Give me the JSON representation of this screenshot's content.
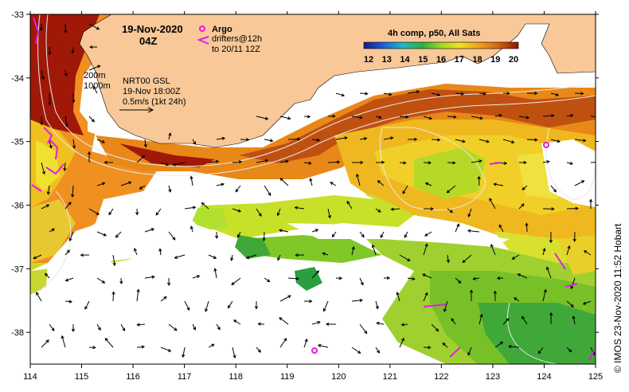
{
  "title": {
    "date": "19-Nov-2020",
    "time": "04Z"
  },
  "legend": {
    "argo_label": "Argo",
    "drifters_line1": "drifters@12h",
    "drifters_line2": "to 20/11 12Z",
    "argo_color": "#e020e0",
    "drifter_color": "#e020e0"
  },
  "colorbar": {
    "title": "4h comp, p50, All Sats",
    "ticks": [
      "12",
      "13",
      "14",
      "15",
      "16",
      "17",
      "18",
      "19",
      "20"
    ]
  },
  "contours": {
    "label_200": "200m",
    "label_1000": "1000m"
  },
  "current_info": {
    "line1": "NRT00 GSL",
    "line2": "19-Nov 18:00Z",
    "line3": "0.5m/s (1kt 24h)"
  },
  "axes": {
    "x_ticks": [
      "114",
      "115",
      "116",
      "117",
      "118",
      "119",
      "120",
      "121",
      "122",
      "123",
      "124",
      "125"
    ],
    "y_ticks": [
      "-33",
      "-34",
      "-35",
      "-36",
      "-37",
      "-38"
    ],
    "x_range": [
      114,
      125
    ],
    "y_range": [
      -38.5,
      -33
    ]
  },
  "credit": "©  IMOS 23-Nov-2020 11:52 Hobart",
  "colors": {
    "land": "#f8c898",
    "warm": "#a01808",
    "cool": "#20a040"
  }
}
